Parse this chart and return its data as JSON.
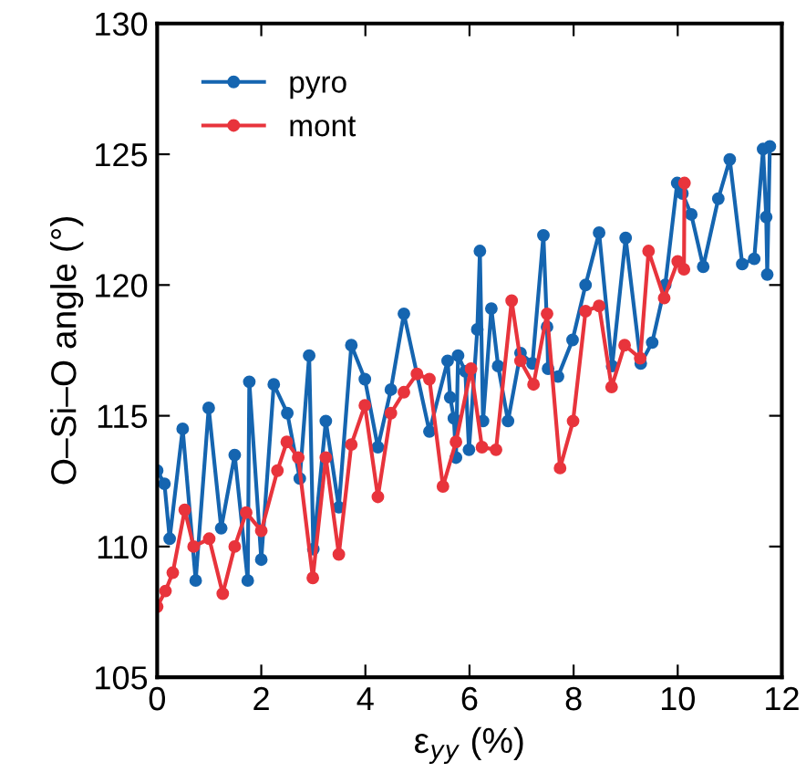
{
  "chart_data": {
    "type": "line",
    "xlabel": "ε$_{yy}$ (%)",
    "ylabel": "O–Si–O angle (°)",
    "xlim": [
      0,
      12
    ],
    "xticks": [
      0,
      2,
      4,
      6,
      8,
      10,
      12
    ],
    "ylim": [
      105,
      130
    ],
    "yticks": [
      105,
      110,
      115,
      120,
      125,
      130
    ],
    "grid": false,
    "legend": "top left",
    "marker": "circle",
    "line_style": "solid",
    "series": [
      {
        "name": "pyro",
        "color": "#1565b0",
        "x": [
          0,
          0.14,
          0.24,
          0.49,
          0.74,
          0.99,
          1.23,
          1.49,
          1.74,
          1.77,
          2.0,
          2.24,
          2.5,
          2.74,
          2.92,
          3.0,
          3.24,
          3.49,
          3.73,
          3.99,
          4.24,
          4.49,
          4.74,
          5.23,
          5.58,
          5.63,
          5.7,
          5.74,
          5.78,
          5.92,
          5.99,
          6.15,
          6.2,
          6.26,
          6.42,
          6.55,
          6.74,
          6.98,
          7.21,
          7.42,
          7.49,
          7.51,
          7.7,
          7.98,
          8.23,
          8.49,
          8.74,
          9.0,
          9.29,
          9.51,
          9.76,
          9.99,
          10.09,
          10.26,
          10.49,
          10.78,
          11.0,
          11.24,
          11.47,
          11.64,
          11.7,
          11.72,
          11.77
        ],
        "values": [
          112.9,
          112.4,
          110.3,
          114.5,
          108.7,
          115.3,
          110.7,
          113.5,
          108.7,
          116.3,
          109.5,
          116.2,
          115.1,
          112.6,
          117.3,
          109.9,
          114.8,
          111.5,
          117.7,
          116.4,
          113.8,
          116.0,
          118.9,
          114.4,
          117.1,
          115.7,
          114.9,
          113.4,
          117.3,
          116.7,
          113.7,
          118.3,
          121.3,
          114.8,
          119.1,
          116.9,
          114.8,
          117.4,
          117.0,
          121.9,
          118.4,
          116.8,
          116.5,
          117.9,
          120.0,
          122.0,
          116.9,
          121.8,
          117.0,
          117.8,
          120.0,
          123.9,
          123.5,
          122.7,
          120.7,
          123.3,
          124.8,
          120.8,
          121.0,
          125.2,
          122.6,
          120.4,
          125.3
        ]
      },
      {
        "name": "mont",
        "color": "#e8343c",
        "x": [
          0,
          0.16,
          0.3,
          0.53,
          0.7,
          1.0,
          1.26,
          1.49,
          1.71,
          2.0,
          2.31,
          2.49,
          2.71,
          2.99,
          3.24,
          3.49,
          3.73,
          3.99,
          4.24,
          4.49,
          4.74,
          4.99,
          5.23,
          5.49,
          5.74,
          6.03,
          6.24,
          6.51,
          6.81,
          6.98,
          7.23,
          7.49,
          7.74,
          7.99,
          8.23,
          8.49,
          8.73,
          8.98,
          9.28,
          9.44,
          9.74,
          10.0,
          10.12,
          10.13
        ],
        "values": [
          107.7,
          108.3,
          109.0,
          111.4,
          110.0,
          110.3,
          108.2,
          110.0,
          111.3,
          110.6,
          112.9,
          114.0,
          113.4,
          108.8,
          113.4,
          109.7,
          113.9,
          115.4,
          111.9,
          115.1,
          115.9,
          116.6,
          116.4,
          112.3,
          114.0,
          116.8,
          113.8,
          113.7,
          119.4,
          117.1,
          116.2,
          118.9,
          113.0,
          114.8,
          119.0,
          119.2,
          116.1,
          117.7,
          117.2,
          121.3,
          119.5,
          120.9,
          120.6,
          123.9
        ]
      }
    ]
  }
}
